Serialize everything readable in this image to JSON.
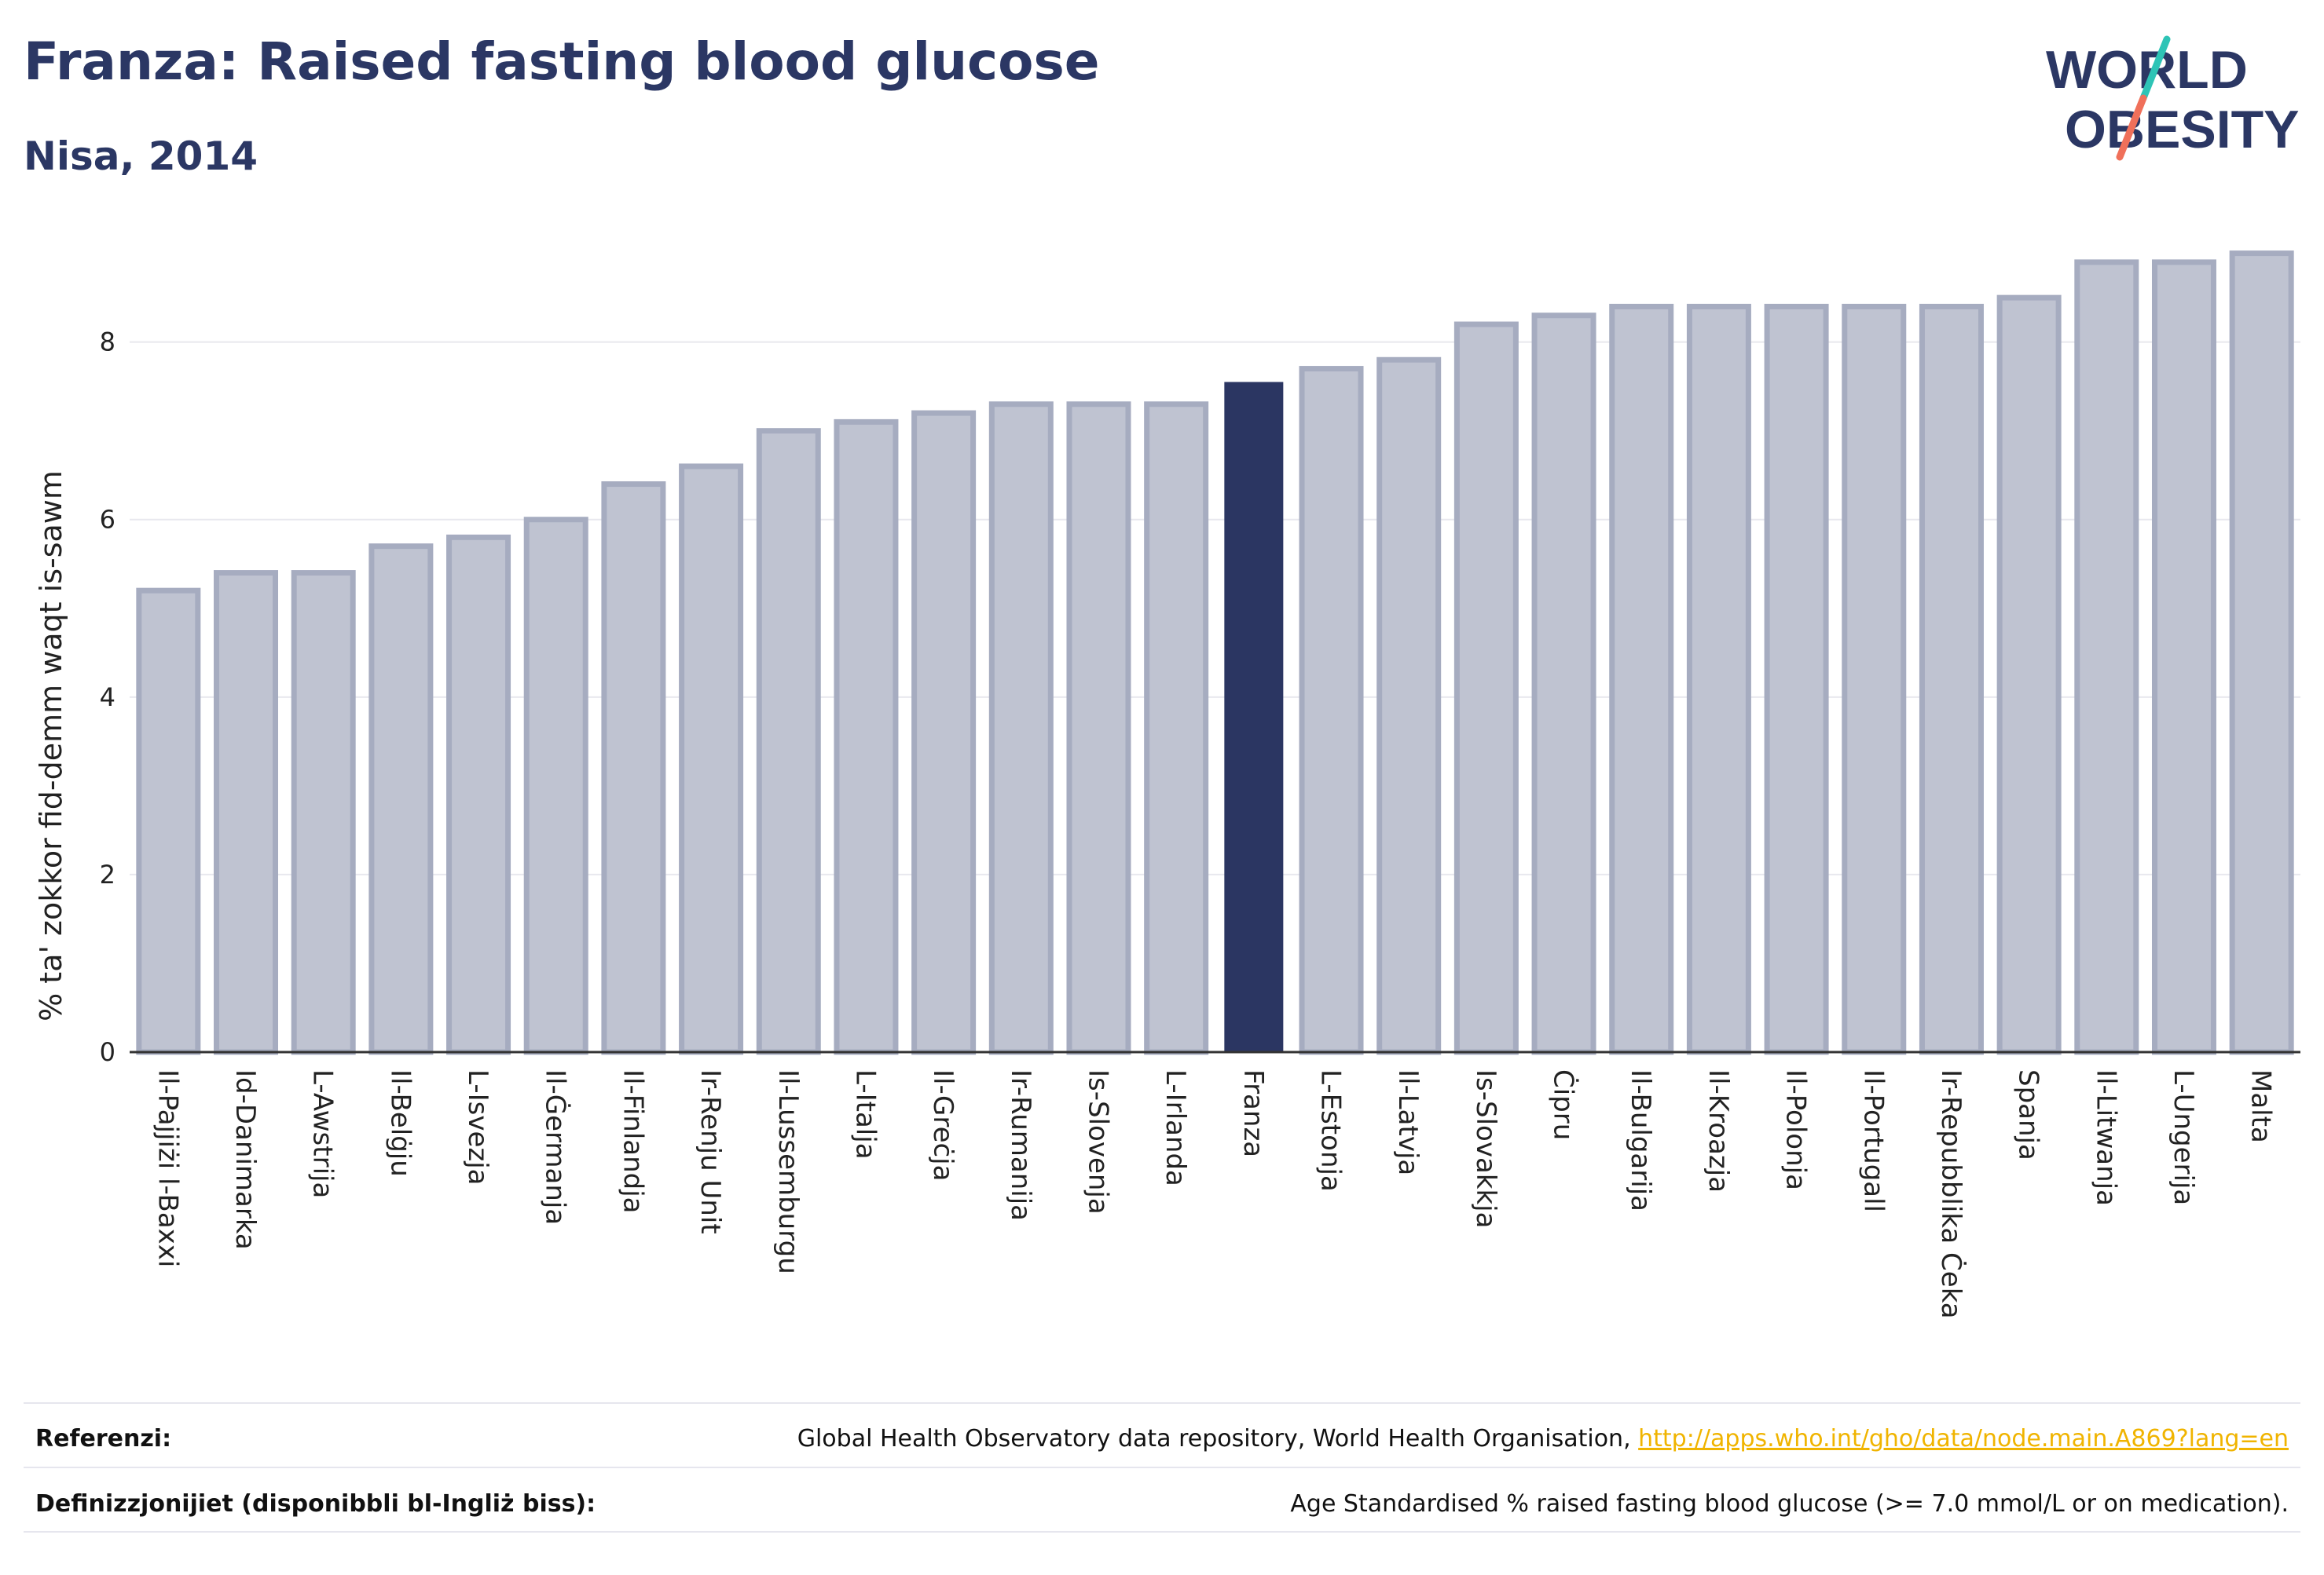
{
  "header": {
    "title": "Franza: Raised fasting blood glucose",
    "subtitle": "Nisa, 2014"
  },
  "logo": {
    "line1": "WORLD",
    "line2": "OBESITY",
    "colors": {
      "text": "#2b3764",
      "slash_top": "#2ec4b6",
      "slash_bottom": "#f0705a"
    }
  },
  "colors": {
    "bar": "#bfc3d1",
    "bar_stroke": "#a6acc0",
    "highlight": "#2b3662",
    "axis": "#333333",
    "grid": "#e8e8ee"
  },
  "chart_data": {
    "type": "bar",
    "ylabel": "% ta' zokkor fid-demm waqt is-sawm",
    "ylim": [
      0,
      9.2
    ],
    "yticks": [
      0,
      2,
      4,
      6,
      8
    ],
    "grid": true,
    "highlight": "Franza",
    "categories": [
      "Il-Pajjiżi l-Baxxi",
      "Id-Danimarka",
      "L-Awstrija",
      "Il-Belġju",
      "L-Isvezja",
      "Il-Ġermanja",
      "Il-Finlandja",
      "Ir-Renju Unit",
      "Il-Lussemburgu",
      "L-Italja",
      "Il-Greċja",
      "Ir-Rumanija",
      "Is-Slovenja",
      "L-Irlanda",
      "Franza",
      "L-Estonja",
      "Il-Latvja",
      "Is-Slovakkja",
      "Ċipru",
      "Il-Bulgarija",
      "Il-Kroazja",
      "Il-Polonja",
      "Il-Portugall",
      "Ir-Repubblika Ċeka",
      "Spanja",
      "Il-Litwanja",
      "L-Ungerija",
      "Malta"
    ],
    "values": [
      5.2,
      5.4,
      5.4,
      5.7,
      5.8,
      6.0,
      6.4,
      6.6,
      7.0,
      7.1,
      7.2,
      7.3,
      7.3,
      7.3,
      7.55,
      7.7,
      7.8,
      8.2,
      8.3,
      8.4,
      8.4,
      8.4,
      8.4,
      8.4,
      8.5,
      8.9,
      8.9,
      9.0
    ]
  },
  "footer": {
    "references_label": "Referenzi:",
    "references_text": "Global Health Observatory data repository, World Health Organisation, ",
    "references_link": "http://apps.who.int/gho/data/node.main.A869?lang=en",
    "definitions_label": "Definizzjonijiet (disponibbli bl-Ingliż biss):",
    "definitions_text": "Age Standardised % raised fasting blood glucose (>= 7.0 mmol/L or on medication)."
  }
}
